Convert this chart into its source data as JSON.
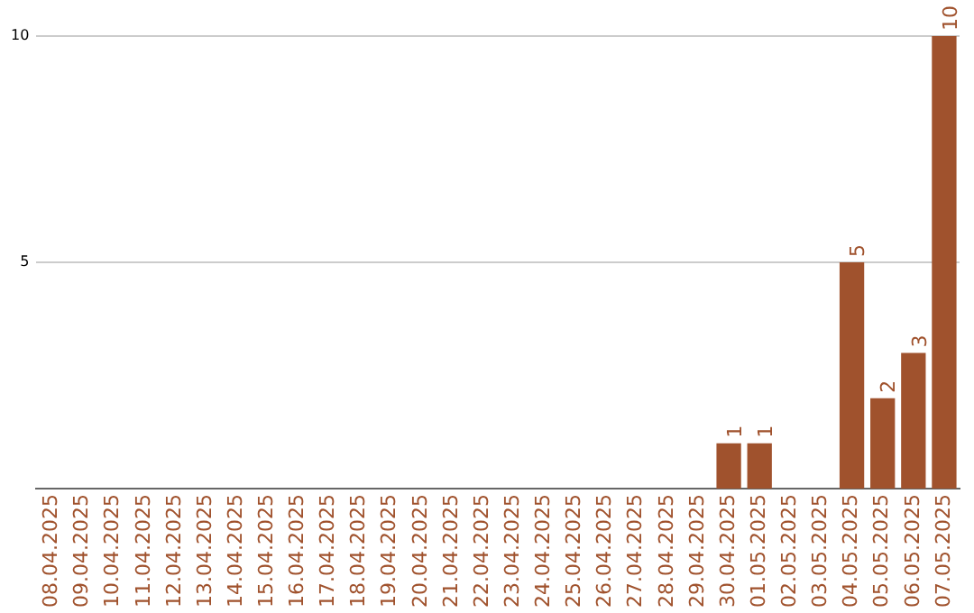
{
  "chart_data": {
    "type": "bar",
    "categories": [
      "08.04.2025",
      "09.04.2025",
      "10.04.2025",
      "11.04.2025",
      "12.04.2025",
      "13.04.2025",
      "14.04.2025",
      "15.04.2025",
      "16.04.2025",
      "17.04.2025",
      "18.04.2025",
      "19.04.2025",
      "20.04.2025",
      "21.04.2025",
      "22.04.2025",
      "23.04.2025",
      "24.04.2025",
      "25.04.2025",
      "26.04.2025",
      "27.04.2025",
      "28.04.2025",
      "29.04.2025",
      "30.04.2025",
      "01.05.2025",
      "02.05.2025",
      "03.05.2025",
      "04.05.2025",
      "05.05.2025",
      "06.05.2025",
      "07.05.2025"
    ],
    "values": [
      0,
      0,
      0,
      0,
      0,
      0,
      0,
      0,
      0,
      0,
      0,
      0,
      0,
      0,
      0,
      0,
      0,
      0,
      0,
      0,
      0,
      0,
      1,
      1,
      0,
      0,
      5,
      2,
      3,
      10
    ],
    "value_labels": [
      null,
      null,
      null,
      null,
      null,
      null,
      null,
      null,
      null,
      null,
      null,
      null,
      null,
      null,
      null,
      null,
      null,
      null,
      null,
      null,
      null,
      null,
      "1",
      "1",
      null,
      null,
      "5",
      "2",
      "3",
      "10"
    ],
    "color": "#a0522d",
    "ylim": [
      0,
      10
    ],
    "yticks": [
      5,
      10
    ],
    "grid": "y",
    "legend": false
  }
}
